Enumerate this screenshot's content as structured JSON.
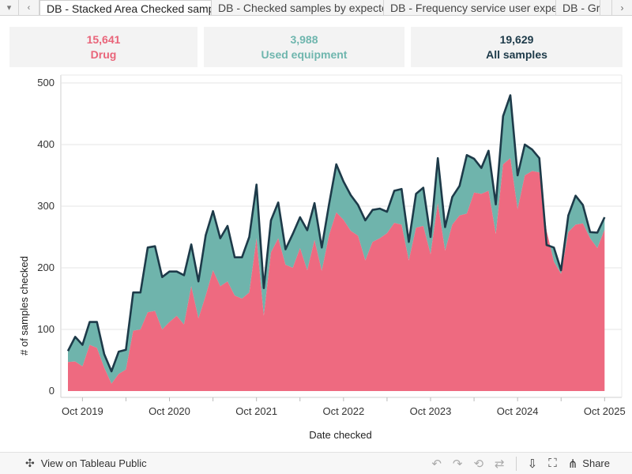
{
  "tabbar": {
    "menu_icon": "chevron-down-icon",
    "prev_icon": "chevron-left-icon",
    "next_icon": "chevron-right-icon",
    "tabs": [
      {
        "label": "DB - Stacked Area Checked samples by type"
      },
      {
        "label": "DB - Checked samples by expected substance"
      },
      {
        "label": "DB - Frequency service user expected"
      },
      {
        "label": "DB - Gro"
      }
    ]
  },
  "kpis": {
    "drug": {
      "value": "15,641",
      "label": "Drug",
      "color": "#e96479"
    },
    "equipment": {
      "value": "3,988",
      "label": "Used equipment",
      "color": "#6fb6ae"
    },
    "all": {
      "value": "19,629",
      "label": "All samples",
      "color": "#1d3a49"
    }
  },
  "chart_data": {
    "type": "area",
    "stacked": true,
    "xlabel": "Date checked",
    "ylabel": "# of samples checked",
    "ylim": [
      0,
      500
    ],
    "yticks": [
      0,
      100,
      200,
      300,
      400,
      500
    ],
    "xticks": [
      "Oct 2019",
      "Oct 2020",
      "Oct 2021",
      "Oct 2022",
      "Oct 2023",
      "Oct 2024",
      "Oct 2025"
    ],
    "grid": true,
    "x": [
      "2019-08",
      "2019-09",
      "2019-10",
      "2019-11",
      "2019-12",
      "2020-01",
      "2020-02",
      "2020-03",
      "2020-04",
      "2020-05",
      "2020-06",
      "2020-07",
      "2020-08",
      "2020-09",
      "2020-10",
      "2020-11",
      "2020-12",
      "2021-01",
      "2021-02",
      "2021-03",
      "2021-04",
      "2021-05",
      "2021-06",
      "2021-07",
      "2021-08",
      "2021-09",
      "2021-10",
      "2021-11",
      "2021-12",
      "2022-01",
      "2022-02",
      "2022-03",
      "2022-04",
      "2022-05",
      "2022-06",
      "2022-07",
      "2022-08",
      "2022-09",
      "2022-10",
      "2022-11",
      "2022-12",
      "2023-01",
      "2023-02",
      "2023-03",
      "2023-04",
      "2023-05",
      "2023-06",
      "2023-07",
      "2023-08",
      "2023-09",
      "2023-10",
      "2023-11",
      "2023-12",
      "2024-01",
      "2024-02",
      "2024-03",
      "2024-04",
      "2024-05",
      "2024-06",
      "2024-07",
      "2024-08",
      "2024-09",
      "2024-10",
      "2024-11",
      "2024-12",
      "2025-01",
      "2025-02",
      "2025-03",
      "2025-04",
      "2025-05",
      "2025-06",
      "2025-07",
      "2025-08",
      "2025-09",
      "2025-10",
      "2025-11",
      "2025-12"
    ],
    "series": [
      {
        "name": "Drug",
        "color": "#ee6a80",
        "values": [
          47,
          48,
          40,
          75,
          70,
          38,
          12,
          28,
          35,
          98,
          100,
          128,
          130,
          100,
          112,
          122,
          108,
          170,
          118,
          155,
          196,
          170,
          178,
          155,
          150,
          160,
          248,
          122,
          225,
          248,
          205,
          200,
          232,
          196,
          245,
          195,
          253,
          290,
          278,
          260,
          252,
          212,
          242,
          248,
          256,
          273,
          270,
          212,
          265,
          268,
          222,
          305,
          228,
          270,
          285,
          288,
          322,
          320,
          325,
          255,
          368,
          378,
          295,
          350,
          357,
          355,
          260,
          210,
          190,
          258,
          270,
          272,
          248,
          232,
          262,
          null,
          null
        ]
      },
      {
        "name": "Used equipment",
        "color": "#6fb4ac",
        "values": [
          18,
          40,
          35,
          37,
          42,
          22,
          20,
          36,
          32,
          62,
          60,
          105,
          105,
          85,
          82,
          72,
          80,
          68,
          60,
          98,
          96,
          78,
          90,
          62,
          67,
          90,
          87,
          45,
          52,
          58,
          25,
          55,
          50,
          65,
          60,
          38,
          50,
          78,
          62,
          58,
          50,
          65,
          52,
          48,
          35,
          52,
          58,
          30,
          55,
          62,
          28,
          73,
          38,
          45,
          48,
          95,
          55,
          42,
          65,
          48,
          78,
          102,
          55,
          50,
          35,
          23,
          -23,
          23,
          6,
          27,
          47,
          30,
          10,
          25,
          20,
          null,
          null
        ]
      }
    ]
  },
  "toolbar": {
    "view_label": "View on Tableau Public",
    "tableau_icon": "tableau-logo-icon",
    "share_label": "Share",
    "icons": [
      "undo-icon",
      "redo-icon",
      "revert-icon",
      "refresh-icon",
      "pause-icon",
      "download-icon",
      "fullscreen-icon",
      "share-icon"
    ]
  }
}
